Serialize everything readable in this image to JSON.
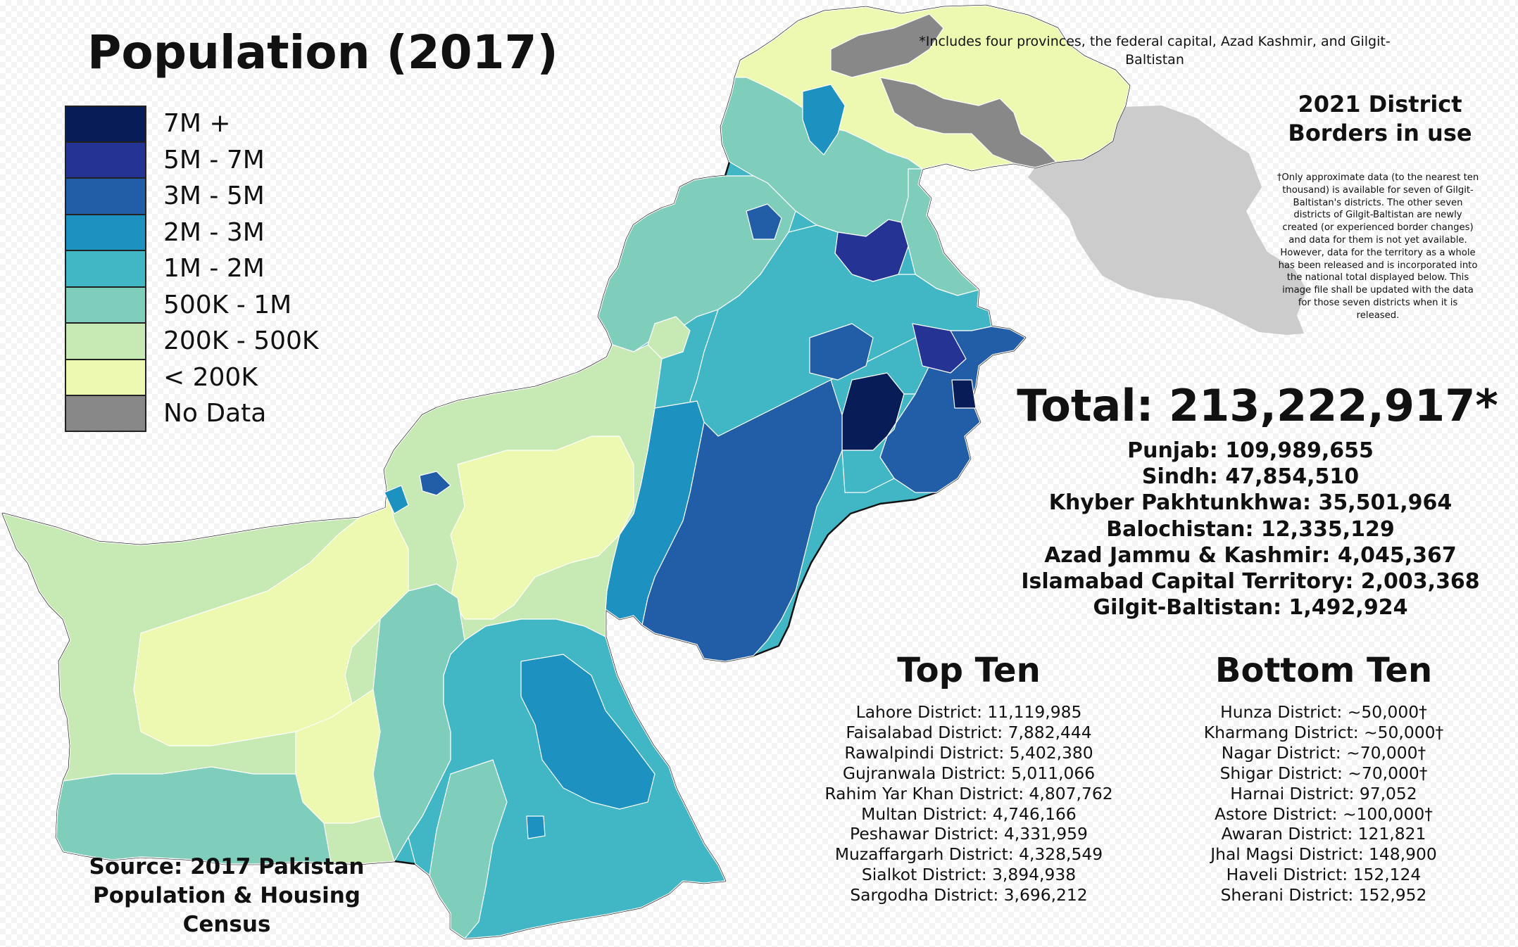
{
  "title": "Population (2017)",
  "legend": [
    {
      "label": "7M +",
      "color": "#081d58"
    },
    {
      "label": "5M - 7M",
      "color": "#253494"
    },
    {
      "label": "3M - 5M",
      "color": "#225ea8"
    },
    {
      "label": "2M - 3M",
      "color": "#1d91c0"
    },
    {
      "label": "1M - 2M",
      "color": "#41b6c4"
    },
    {
      "label": "500K - 1M",
      "color": "#7fcdbb"
    },
    {
      "label": "200K - 500K",
      "color": "#c7e9b4"
    },
    {
      "label": "< 200K",
      "color": "#edf8b1"
    },
    {
      "label": "No Data",
      "color": "#888888"
    }
  ],
  "colors": {
    "outside_territory": "#cccccc",
    "border": "#111111",
    "district_line": "#ffffff"
  },
  "note_top": "*Includes four provinces, the federal capital, Azad Kashmir, and Gilgit-Baltistan",
  "borders_note": "2021 District Borders in use",
  "fineprint": "†Only approximate data (to the nearest ten thousand) is available for seven of Gilgit-Baltistan's districts. The other seven districts of Gilgit-Baltistan are newly created (or experienced border changes) and data for them is not yet available. However, data for the territory as a whole has been released and is incorporated into the national total displayed below. This image file shall be updated with the data for those seven districts when it is released.",
  "total": "Total: 213,222,917*",
  "provinces": [
    "Punjab: 109,989,655",
    "Sindh: 47,854,510",
    "Khyber Pakhtunkhwa: 35,501,964",
    "Balochistan: 12,335,129",
    "Azad Jammu & Kashmir: 4,045,367",
    "Islamabad Capital Territory: 2,003,368",
    "Gilgit-Baltistan: 1,492,924"
  ],
  "top_ten": {
    "title": "Top Ten",
    "items": [
      "Lahore District: 11,119,985",
      "Faisalabad District: 7,882,444",
      "Rawalpindi District: 5,402,380",
      "Gujranwala District: 5,011,066",
      "Rahim Yar Khan District: 4,807,762",
      "Multan District: 4,746,166",
      "Peshawar District: 4,331,959",
      "Muzaffargarh District: 4,328,549",
      "Sialkot District: 3,894,938",
      "Sargodha District: 3,696,212"
    ]
  },
  "bottom_ten": {
    "title": "Bottom Ten",
    "items": [
      "Hunza District: ~50,000†",
      "Kharmang District: ~50,000†",
      "Nagar District: ~70,000†",
      "Shigar District: ~70,000†",
      "Harnai District: 97,052",
      "Astore District: ~100,000†",
      "Awaran District: 121,821",
      "Jhal Magsi District: 148,900",
      "Haveli District: 152,124",
      "Sherani District: 152,952"
    ]
  },
  "source": "Source: 2017 Pakistan Population & Housing Census"
}
